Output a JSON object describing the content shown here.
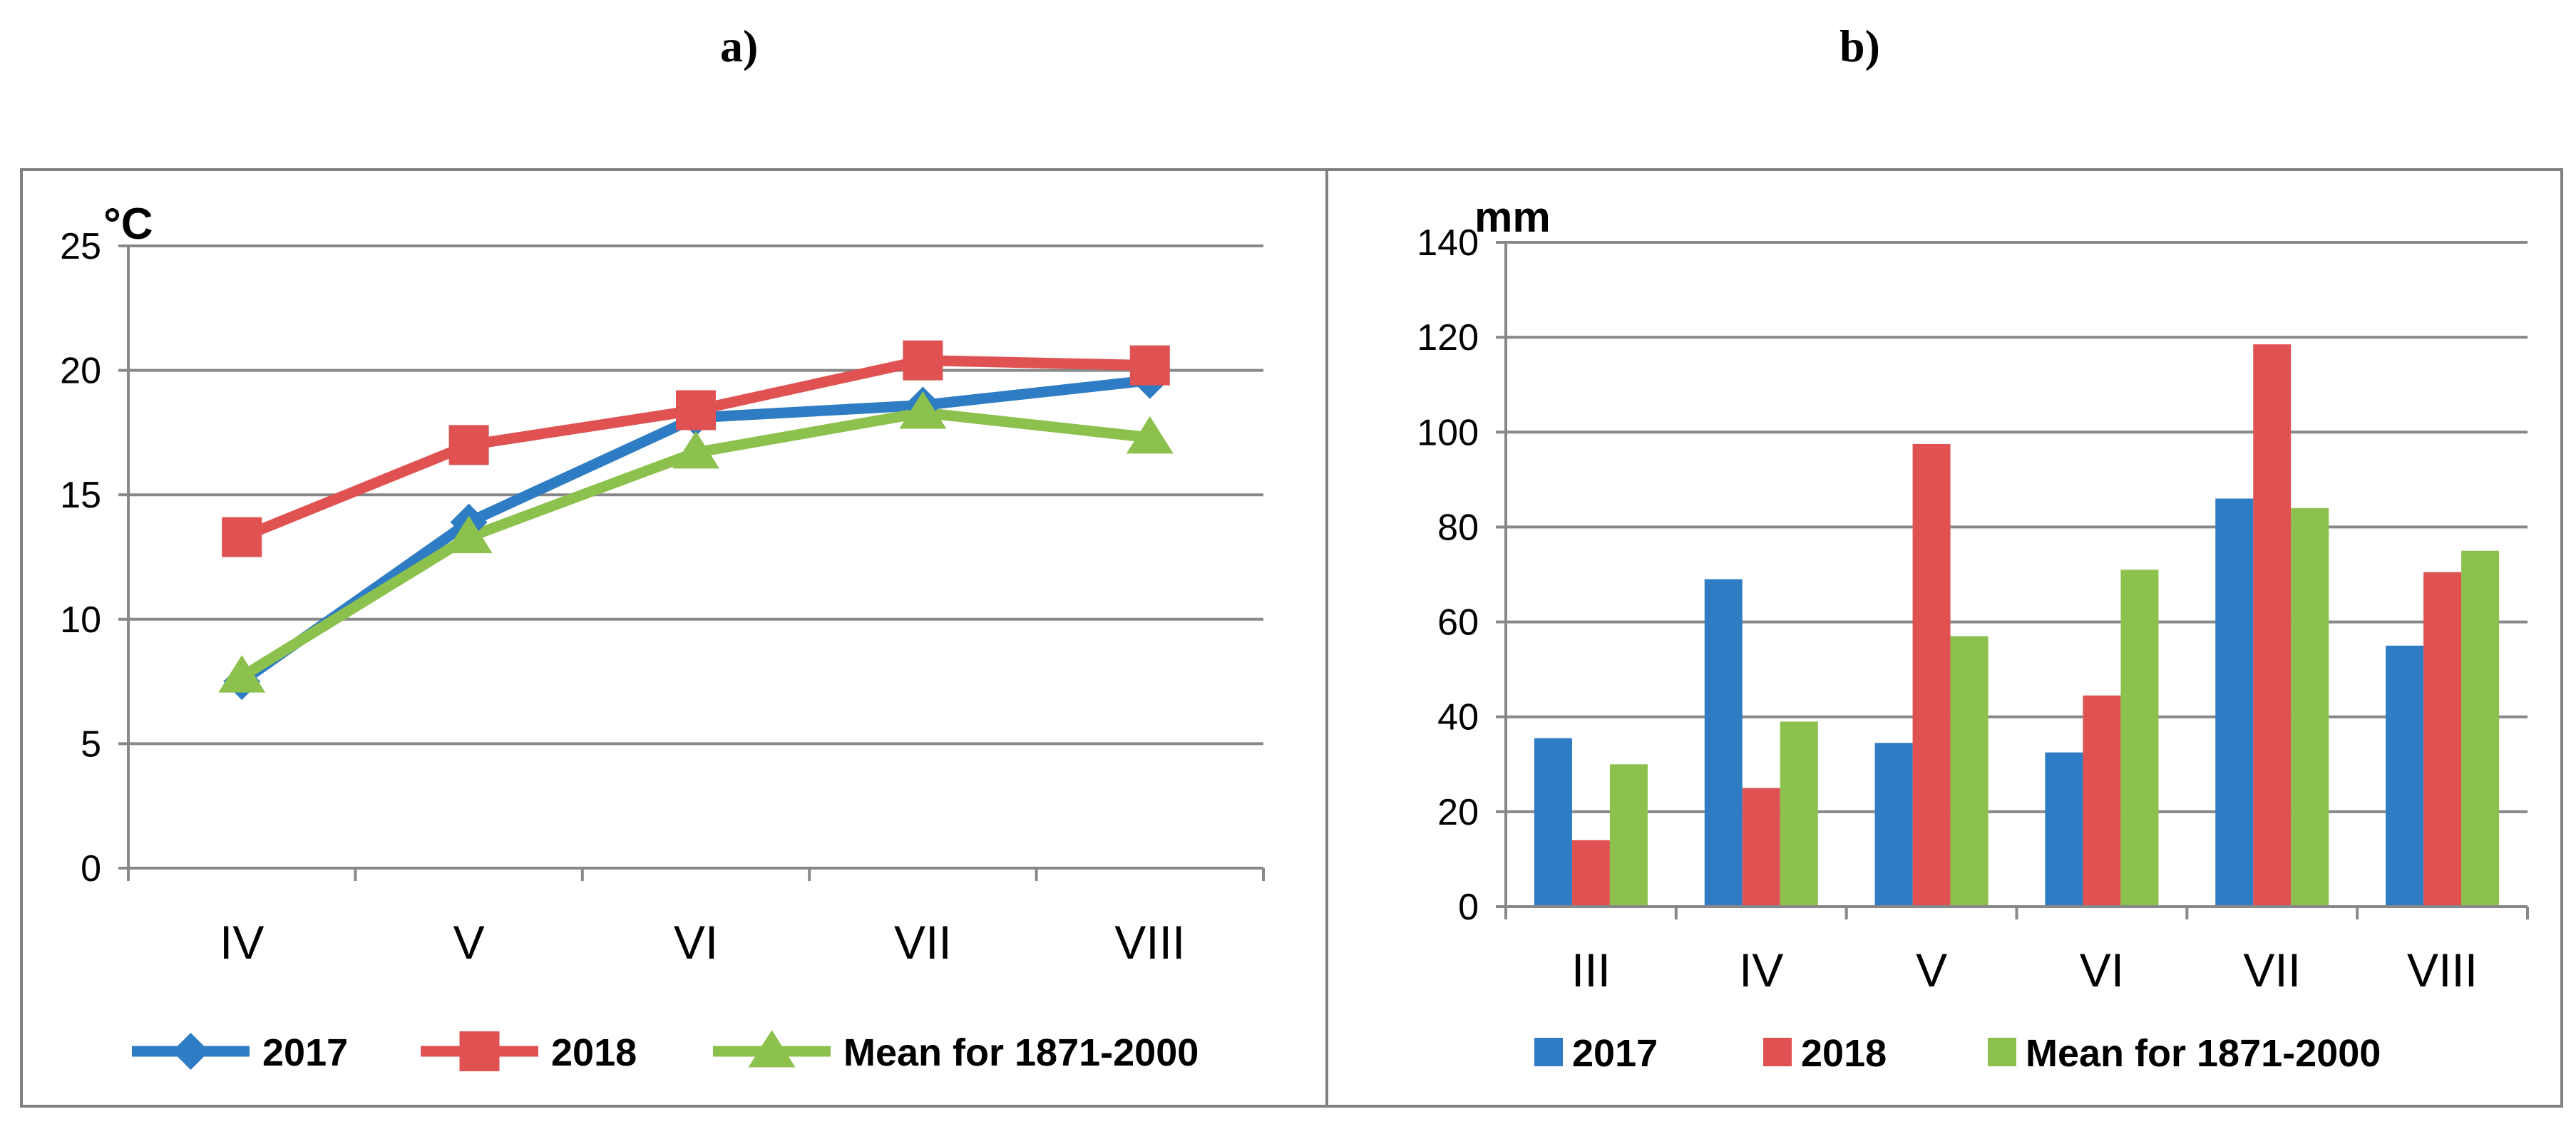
{
  "panels": {
    "a_label": "a)",
    "b_label": "b)"
  },
  "colors": {
    "series_2017": "#2E7CC3",
    "series_2018": "#E05252",
    "series_mean": "#8DC14E",
    "grid": "#888888",
    "text": "#000000"
  },
  "chart_data": [
    {
      "id": "temperature",
      "type": "line",
      "title": "",
      "unit_label": "°C",
      "xlabel": "",
      "ylabel": "°C",
      "categories": [
        "IV",
        "V",
        "VI",
        "VII",
        "VIII"
      ],
      "ylim": [
        0,
        25
      ],
      "yticks": [
        0,
        5,
        10,
        15,
        20,
        25
      ],
      "grid": true,
      "legend_position": "bottom",
      "series": [
        {
          "name": "2017",
          "marker": "diamond",
          "values": [
            7.5,
            13.9,
            18.1,
            18.6,
            19.6
          ]
        },
        {
          "name": "2018",
          "marker": "square",
          "values": [
            13.3,
            17.0,
            18.4,
            20.4,
            20.2
          ]
        },
        {
          "name": "Mean for 1871-2000",
          "marker": "triangle",
          "values": [
            7.7,
            13.3,
            16.7,
            18.3,
            17.3
          ]
        }
      ]
    },
    {
      "id": "precipitation",
      "type": "bar",
      "title": "",
      "unit_label": "mm",
      "xlabel": "",
      "ylabel": "mm",
      "categories": [
        "III",
        "IV",
        "V",
        "VI",
        "VII",
        "VIII"
      ],
      "ylim": [
        0,
        140
      ],
      "yticks": [
        0,
        20,
        40,
        60,
        80,
        100,
        120,
        140
      ],
      "grid": true,
      "legend_position": "bottom",
      "series": [
        {
          "name": "2017",
          "values": [
            35.5,
            69,
            34.5,
            32.5,
            86,
            55
          ]
        },
        {
          "name": "2018",
          "values": [
            14,
            25,
            97.5,
            44.5,
            118.5,
            70.5
          ]
        },
        {
          "name": "Mean for 1871-2000",
          "values": [
            30,
            39,
            57,
            71,
            84,
            75
          ]
        }
      ]
    }
  ]
}
